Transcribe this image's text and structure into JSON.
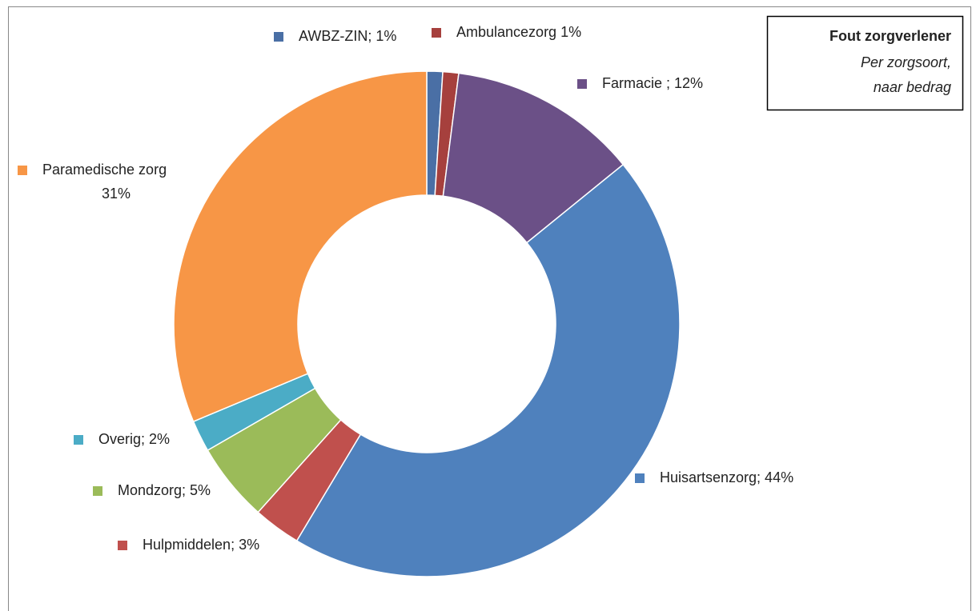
{
  "chart_data": {
    "type": "donut",
    "title": "Fout zorgverlener",
    "subtitle": [
      "Per zorgsoort,",
      "naar bedrag"
    ],
    "categories": [
      "AWBZ-ZIN",
      "Ambulancezorg",
      "Farmacie",
      "Huisartsenzorg",
      "Hulpmiddelen",
      "Mondzorg",
      "Overig",
      "Paramedische zorg"
    ],
    "values": [
      1,
      1,
      12,
      44,
      3,
      5,
      2,
      31
    ],
    "value_labels": [
      [
        "AWBZ-ZIN; 1%"
      ],
      [
        "Ambulancezorg 1%"
      ],
      [
        "Farmacie ; 12%"
      ],
      [
        "Huisartsenzorg; 44%"
      ],
      [
        "Hulpmiddelen; 3%"
      ],
      [
        "Mondzorg; 5%"
      ],
      [
        "Overig; 2%"
      ],
      [
        "Paramedische zorg",
        "31%"
      ]
    ],
    "colors": [
      "#4a6fa5",
      "#a6403d",
      "#6b5087",
      "#4f81bd",
      "#c0504d",
      "#9bbb59",
      "#4bacc6",
      "#f79646"
    ]
  }
}
